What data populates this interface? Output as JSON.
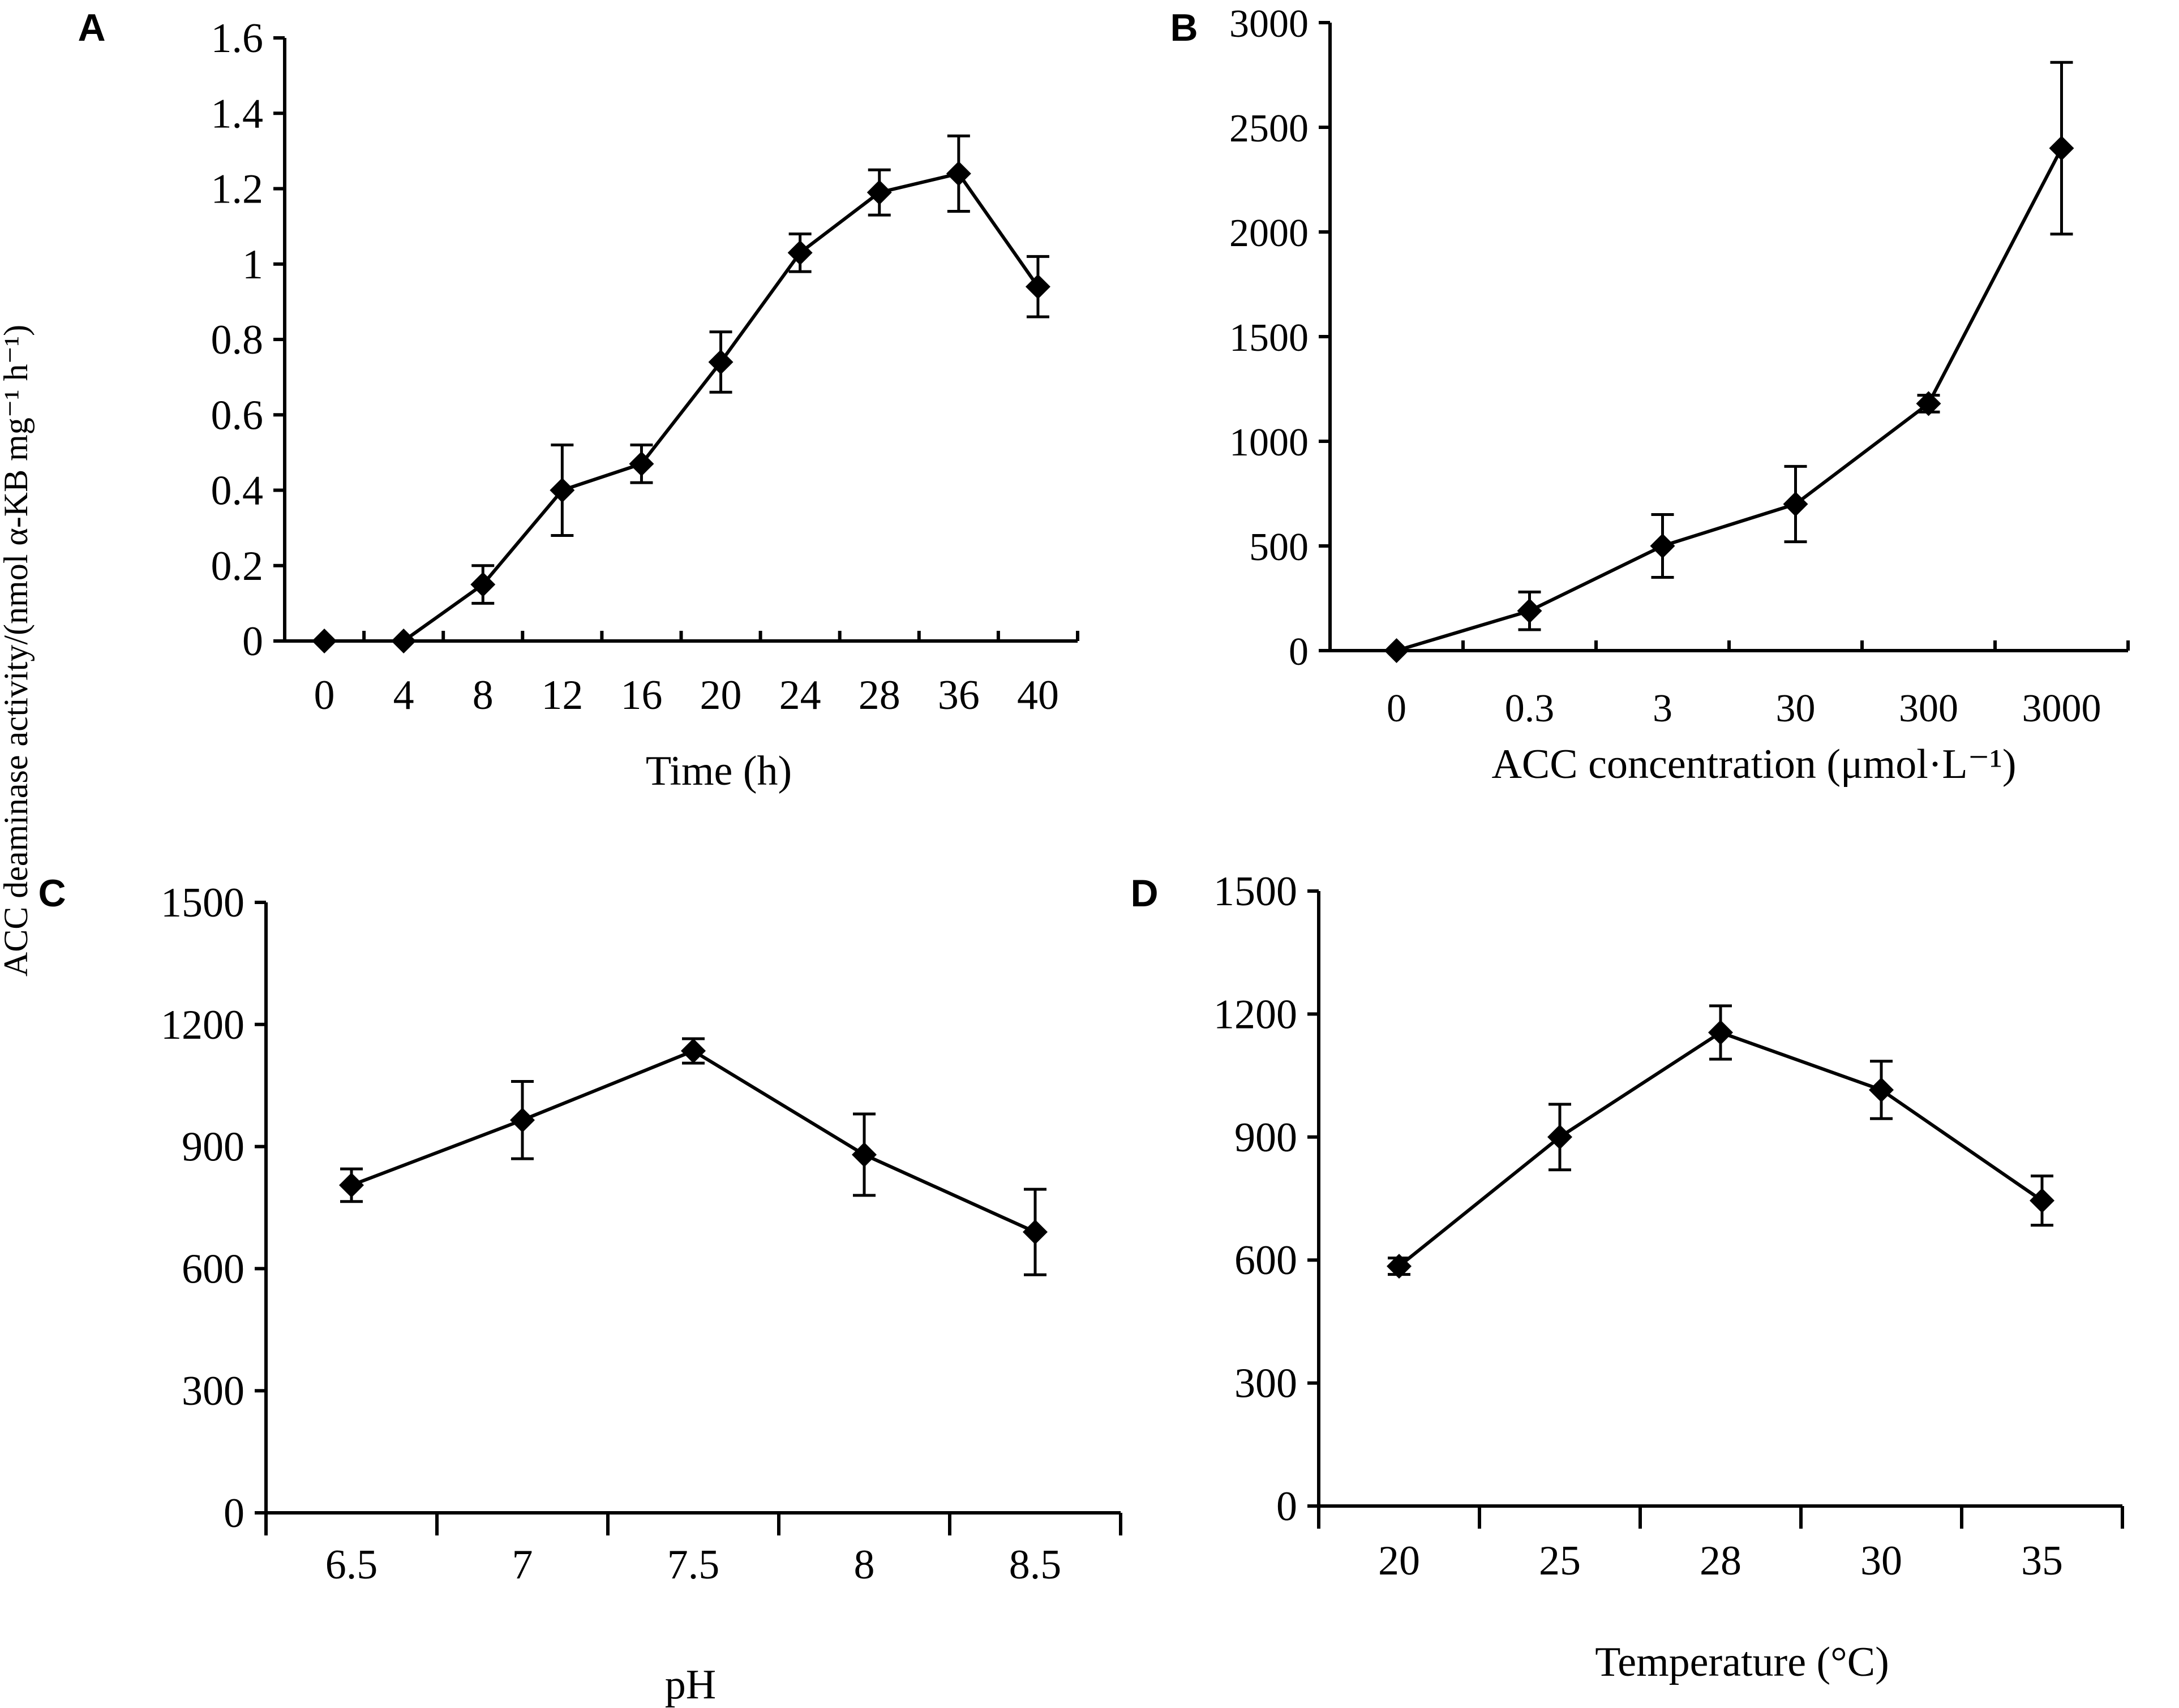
{
  "figure": {
    "shared_ylabel": "ACC deaminase activity/(nmol α-KB mg⁻¹ h⁻¹)"
  },
  "chart_data": [
    {
      "panel": "A",
      "type": "line",
      "categories": [
        "0",
        "4",
        "8",
        "12",
        "16",
        "20",
        "24",
        "28",
        "36",
        "40"
      ],
      "series": [
        {
          "name": "ACC deaminase activity",
          "values": [
            0,
            0,
            0.15,
            0.4,
            0.47,
            0.74,
            1.03,
            1.19,
            1.24,
            0.94
          ],
          "errors": [
            0,
            0,
            0.05,
            0.12,
            0.05,
            0.08,
            0.05,
            0.06,
            0.1,
            0.08
          ]
        }
      ],
      "yticks": [
        "0",
        "0.2",
        "0.4",
        "0.6",
        "0.8",
        "1",
        "1.2",
        "1.4",
        "1.6"
      ],
      "ylim": [
        0,
        1.6
      ],
      "xlabel": "Time (h)",
      "ylabel": ""
    },
    {
      "panel": "B",
      "type": "line",
      "categories": [
        "0",
        "0.3",
        "3",
        "30",
        "300",
        "3000"
      ],
      "series": [
        {
          "name": "ACC deaminase activity",
          "values": [
            0,
            190,
            500,
            700,
            1180,
            2400
          ],
          "errors": [
            0,
            90,
            150,
            180,
            40,
            410
          ]
        }
      ],
      "yticks": [
        "0",
        "500",
        "1000",
        "1500",
        "2000",
        "2500",
        "3000"
      ],
      "ylim": [
        0,
        3000
      ],
      "xlabel": "ACC concentration (μmol·L⁻¹)",
      "ylabel": ""
    },
    {
      "panel": "C",
      "type": "line",
      "categories": [
        "6.5",
        "7",
        "7.5",
        "8",
        "8.5"
      ],
      "series": [
        {
          "name": "ACC deaminase activity",
          "values": [
            805,
            965,
            1135,
            880,
            690
          ],
          "errors": [
            40,
            95,
            30,
            100,
            105
          ]
        }
      ],
      "yticks": [
        "0",
        "300",
        "600",
        "900",
        "1200",
        "1500"
      ],
      "ylim": [
        0,
        1500
      ],
      "xlabel": "pH",
      "ylabel": ""
    },
    {
      "panel": "D",
      "type": "line",
      "categories": [
        "20",
        "25",
        "28",
        "30",
        "35"
      ],
      "series": [
        {
          "name": "ACC deaminase activity",
          "values": [
            585,
            900,
            1155,
            1015,
            745
          ],
          "errors": [
            20,
            80,
            65,
            70,
            60
          ]
        }
      ],
      "yticks": [
        "0",
        "300",
        "600",
        "900",
        "1200",
        "1500"
      ],
      "ylim": [
        0,
        1500
      ],
      "xlabel": "Temperature (°C)",
      "ylabel": ""
    }
  ]
}
